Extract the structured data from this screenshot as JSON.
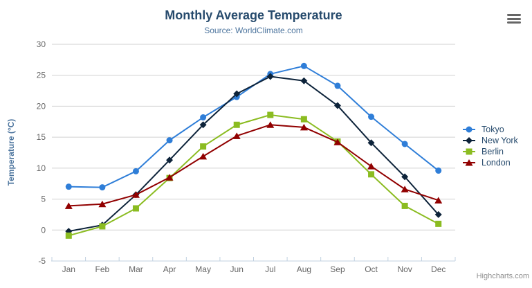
{
  "chart_data": {
    "type": "line",
    "title": "Monthly Average Temperature",
    "subtitle": "Source: WorldClimate.com",
    "categories": [
      "Jan",
      "Feb",
      "Mar",
      "Apr",
      "May",
      "Jun",
      "Jul",
      "Aug",
      "Sep",
      "Oct",
      "Nov",
      "Dec"
    ],
    "series": [
      {
        "name": "Tokyo",
        "color": "#2f7ed8",
        "marker": "circle",
        "values": [
          7.0,
          6.9,
          9.5,
          14.5,
          18.2,
          21.5,
          25.2,
          26.5,
          23.3,
          18.3,
          13.9,
          9.6
        ]
      },
      {
        "name": "New York",
        "color": "#0d233a",
        "marker": "diamond",
        "values": [
          -0.2,
          0.8,
          5.7,
          11.3,
          17.0,
          22.0,
          24.8,
          24.1,
          20.1,
          14.1,
          8.6,
          2.5
        ]
      },
      {
        "name": "Berlin",
        "color": "#8bbc21",
        "marker": "square",
        "values": [
          -0.9,
          0.6,
          3.5,
          8.4,
          13.5,
          17.0,
          18.6,
          17.9,
          14.3,
          9.0,
          3.9,
          1.0
        ]
      },
      {
        "name": "London",
        "color": "#910000",
        "marker": "triangle",
        "values": [
          3.9,
          4.2,
          5.7,
          8.5,
          11.9,
          15.2,
          17.0,
          16.6,
          14.2,
          10.3,
          6.6,
          4.8
        ]
      }
    ],
    "xlabel": "",
    "ylabel": "Temperature (°C)",
    "ylim": [
      -5,
      30
    ],
    "ytick_interval": 5,
    "grid": true,
    "legend_position": "right"
  },
  "credit": {
    "label": "Highcharts.com"
  },
  "menu": {
    "icon": "hamburger-icon"
  },
  "theme": {
    "background": "#ffffff",
    "title_color": "#274b6d",
    "subtitle_color": "#4d759e",
    "axis_label_color": "#666666",
    "axis_title_color": "#4d759e",
    "grid_color": "#d0d0d0",
    "axis_line_color": "#c0d0e0",
    "legend_text_color": "#274b6d",
    "credit_color": "#909090",
    "menu_icon_color": "#666666"
  }
}
